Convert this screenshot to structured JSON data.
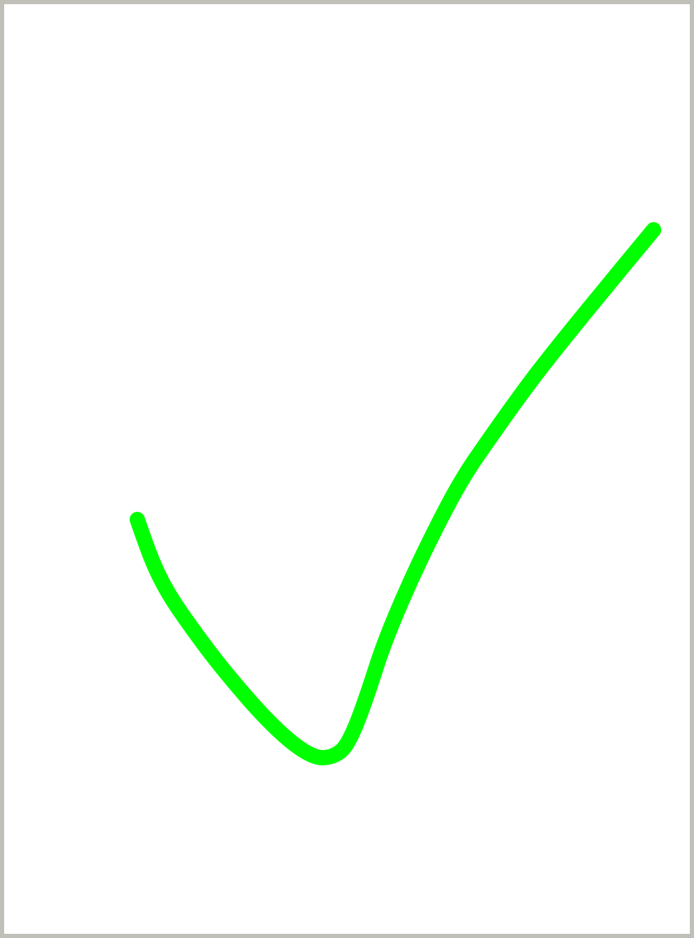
{
  "canvas": {
    "background": "#ffffff",
    "border_color": "#c0c0b8"
  },
  "drawing": {
    "icon": "checkmark-icon",
    "stroke_color": "#00ff00"
  }
}
